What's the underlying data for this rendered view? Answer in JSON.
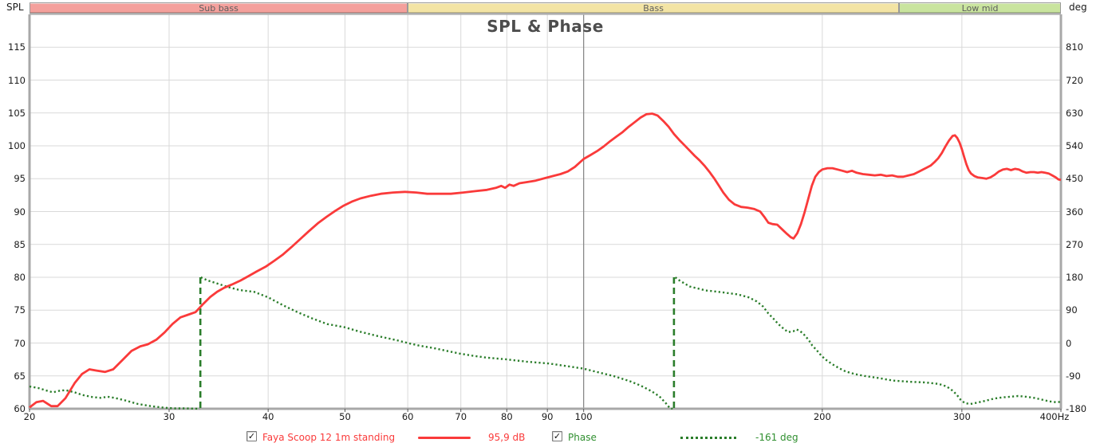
{
  "header": {
    "left_axis_unit": "SPL",
    "right_axis_unit": "deg",
    "title": "SPL & Phase"
  },
  "bands": [
    {
      "label": "Sub bass",
      "from_hz": 20,
      "to_hz": 60,
      "color": "#f4a09c"
    },
    {
      "label": "Bass",
      "from_hz": 60,
      "to_hz": 250,
      "color": "#f3e4a4"
    },
    {
      "label": "Low mid",
      "from_hz": 250,
      "to_hz": 400,
      "color": "#c9e49e"
    }
  ],
  "axes": {
    "x_scale": "log",
    "x_range": [
      20,
      400
    ],
    "x_ticks": [
      20,
      30,
      40,
      50,
      60,
      70,
      80,
      90,
      100,
      200,
      300
    ],
    "x_end_label": "400Hz",
    "left_range": [
      60,
      120
    ],
    "left_ticks": [
      115,
      110,
      105,
      100,
      95,
      90,
      85,
      80,
      75,
      70,
      65,
      60
    ],
    "right_range": [
      -180,
      900
    ],
    "right_ticks": [
      810,
      720,
      630,
      540,
      450,
      360,
      270,
      180,
      90,
      0,
      -90,
      -180
    ],
    "grid_color": "#d9d9d9",
    "grid_major_color": "#8a8a8a",
    "border_color": "#a8a8a8"
  },
  "legend": {
    "check_glyph": "✓",
    "series1": {
      "checked": true,
      "label": "Faya Scoop 12 1m standing",
      "value": "95,9 dB",
      "color": "#fa3a3a"
    },
    "series2": {
      "checked": true,
      "label": "Phase",
      "value": "-161 deg",
      "color": "#2f8f2f",
      "curve_color": "#2a7d2a"
    }
  },
  "chart_data": {
    "type": "line",
    "title": "SPL & Phase",
    "x_axis": {
      "scale": "log",
      "range_hz": [
        20,
        400
      ],
      "ticks": [
        20,
        30,
        40,
        50,
        60,
        70,
        80,
        90,
        100,
        200,
        300,
        400
      ]
    },
    "y_left": {
      "label": "SPL",
      "unit": "dB",
      "range": [
        60,
        120
      ],
      "grid_step": 5
    },
    "y_right": {
      "label": "Phase",
      "unit": "deg",
      "range": [
        -180,
        900
      ],
      "grid_step": 90
    },
    "series": [
      {
        "name": "Faya Scoop 12 1m standing",
        "axis": "left",
        "style": "solid",
        "color": "#fa3a3a",
        "points": [
          [
            20,
            60.2
          ],
          [
            20.4,
            61.0
          ],
          [
            20.8,
            61.2
          ],
          [
            21.3,
            60.4
          ],
          [
            21.7,
            60.4
          ],
          [
            22.2,
            61.6
          ],
          [
            22.8,
            63.9
          ],
          [
            23.3,
            65.3
          ],
          [
            23.8,
            66.0
          ],
          [
            24.3,
            65.8
          ],
          [
            24.9,
            65.6
          ],
          [
            25.5,
            66.0
          ],
          [
            26.2,
            67.4
          ],
          [
            26.9,
            68.8
          ],
          [
            27.6,
            69.5
          ],
          [
            28.2,
            69.8
          ],
          [
            28.9,
            70.5
          ],
          [
            29.6,
            71.6
          ],
          [
            30.3,
            72.9
          ],
          [
            31,
            73.9
          ],
          [
            31.7,
            74.3
          ],
          [
            32.4,
            74.7
          ],
          [
            33.1,
            75.9
          ],
          [
            33.8,
            77.0
          ],
          [
            34.5,
            77.8
          ],
          [
            35.2,
            78.4
          ],
          [
            36,
            78.9
          ],
          [
            36.9,
            79.5
          ],
          [
            37.8,
            80.2
          ],
          [
            38.7,
            80.9
          ],
          [
            39.7,
            81.6
          ],
          [
            40.7,
            82.5
          ],
          [
            41.7,
            83.4
          ],
          [
            42.8,
            84.6
          ],
          [
            43.9,
            85.8
          ],
          [
            45,
            87.0
          ],
          [
            46.2,
            88.2
          ],
          [
            47.4,
            89.2
          ],
          [
            48.6,
            90.1
          ],
          [
            49.8,
            90.9
          ],
          [
            51,
            91.5
          ],
          [
            52.3,
            92.0
          ],
          [
            53.9,
            92.4
          ],
          [
            55.5,
            92.7
          ],
          [
            57.5,
            92.9
          ],
          [
            59.5,
            93.0
          ],
          [
            61.5,
            92.9
          ],
          [
            63.5,
            92.7
          ],
          [
            65.5,
            92.7
          ],
          [
            68,
            92.7
          ],
          [
            70.5,
            92.9
          ],
          [
            73,
            93.1
          ],
          [
            75.5,
            93.3
          ],
          [
            77.5,
            93.6
          ],
          [
            78.7,
            93.9
          ],
          [
            79.6,
            93.6
          ],
          [
            80.6,
            94.1
          ],
          [
            81.6,
            93.9
          ],
          [
            83,
            94.3
          ],
          [
            85,
            94.5
          ],
          [
            87,
            94.7
          ],
          [
            89.5,
            95.1
          ],
          [
            91.5,
            95.4
          ],
          [
            93.5,
            95.7
          ],
          [
            95.5,
            96.1
          ],
          [
            97.5,
            96.8
          ],
          [
            100,
            98.0
          ],
          [
            102,
            98.6
          ],
          [
            104,
            99.2
          ],
          [
            106,
            99.9
          ],
          [
            108,
            100.7
          ],
          [
            110,
            101.4
          ],
          [
            112,
            102.1
          ],
          [
            114,
            102.9
          ],
          [
            116,
            103.6
          ],
          [
            118,
            104.3
          ],
          [
            120,
            104.8
          ],
          [
            122,
            104.9
          ],
          [
            124,
            104.6
          ],
          [
            126,
            103.8
          ],
          [
            128,
            102.9
          ],
          [
            130,
            101.8
          ],
          [
            132,
            100.9
          ],
          [
            134,
            100.1
          ],
          [
            136,
            99.3
          ],
          [
            138,
            98.5
          ],
          [
            140,
            97.8
          ],
          [
            142,
            97.0
          ],
          [
            144,
            96.1
          ],
          [
            146,
            95.1
          ],
          [
            148,
            94.0
          ],
          [
            150,
            92.9
          ],
          [
            152.5,
            91.8
          ],
          [
            155,
            91.1
          ],
          [
            158,
            90.7
          ],
          [
            161,
            90.6
          ],
          [
            164,
            90.4
          ],
          [
            167,
            90.0
          ],
          [
            169,
            89.2
          ],
          [
            171,
            88.3
          ],
          [
            173,
            88.1
          ],
          [
            175.5,
            88.0
          ],
          [
            178,
            87.3
          ],
          [
            180.5,
            86.6
          ],
          [
            182.5,
            86.1
          ],
          [
            184,
            85.9
          ],
          [
            186,
            86.7
          ],
          [
            188,
            88.1
          ],
          [
            190,
            89.9
          ],
          [
            192,
            91.9
          ],
          [
            194,
            93.9
          ],
          [
            196,
            95.3
          ],
          [
            198,
            96.0
          ],
          [
            200,
            96.4
          ],
          [
            203,
            96.6
          ],
          [
            206,
            96.6
          ],
          [
            209,
            96.4
          ],
          [
            212,
            96.2
          ],
          [
            215,
            96.0
          ],
          [
            218,
            96.2
          ],
          [
            221,
            95.9
          ],
          [
            225,
            95.7
          ],
          [
            229,
            95.6
          ],
          [
            233,
            95.5
          ],
          [
            237,
            95.6
          ],
          [
            241,
            95.4
          ],
          [
            245,
            95.5
          ],
          [
            249,
            95.3
          ],
          [
            253,
            95.3
          ],
          [
            257,
            95.5
          ],
          [
            261,
            95.7
          ],
          [
            265,
            96.1
          ],
          [
            268,
            96.4
          ],
          [
            271,
            96.7
          ],
          [
            274,
            97.0
          ],
          [
            277,
            97.5
          ],
          [
            280,
            98.1
          ],
          [
            283,
            98.9
          ],
          [
            286,
            99.9
          ],
          [
            289,
            100.8
          ],
          [
            292,
            101.5
          ],
          [
            294,
            101.6
          ],
          [
            296,
            101.2
          ],
          [
            298,
            100.5
          ],
          [
            300,
            99.5
          ],
          [
            302,
            98.3
          ],
          [
            304,
            97.2
          ],
          [
            306,
            96.3
          ],
          [
            308,
            95.8
          ],
          [
            311,
            95.4
          ],
          [
            314,
            95.2
          ],
          [
            318,
            95.1
          ],
          [
            322,
            95.0
          ],
          [
            326,
            95.2
          ],
          [
            330,
            95.6
          ],
          [
            334,
            96.1
          ],
          [
            338,
            96.4
          ],
          [
            342,
            96.5
          ],
          [
            346,
            96.3
          ],
          [
            350,
            96.5
          ],
          [
            354,
            96.4
          ],
          [
            358,
            96.1
          ],
          [
            362,
            95.9
          ],
          [
            366,
            96.0
          ],
          [
            370,
            96.0
          ],
          [
            374,
            95.9
          ],
          [
            378,
            96.0
          ],
          [
            382,
            95.9
          ],
          [
            386,
            95.8
          ],
          [
            390,
            95.5
          ],
          [
            394,
            95.2
          ],
          [
            397,
            94.9
          ],
          [
            400,
            94.8
          ]
        ]
      },
      {
        "name": "Phase",
        "axis": "right",
        "style": "dotted",
        "color": "#2a7d2a",
        "wrap_lines_hz": [
          32.85,
          130
        ],
        "points": [
          [
            20,
            -119
          ],
          [
            20.5,
            -123
          ],
          [
            21,
            -130
          ],
          [
            21.4,
            -135
          ],
          [
            21.8,
            -131
          ],
          [
            22.2,
            -129
          ],
          [
            22.8,
            -135
          ],
          [
            23.3,
            -142
          ],
          [
            24,
            -148
          ],
          [
            24.6,
            -150
          ],
          [
            25.1,
            -147
          ],
          [
            25.7,
            -151
          ],
          [
            26.4,
            -157
          ],
          [
            27.4,
            -167
          ],
          [
            28.5,
            -173
          ],
          [
            29.5,
            -177
          ],
          [
            30.5,
            -179
          ],
          [
            31.5,
            -179
          ],
          [
            32.3,
            -179.5
          ],
          [
            32.8,
            -180
          ],
          [
            32.9,
            180
          ],
          [
            33.5,
            172
          ],
          [
            34.5,
            163
          ],
          [
            35.5,
            154
          ],
          [
            36.8,
            145
          ],
          [
            38.4,
            140
          ],
          [
            40,
            125
          ],
          [
            41.8,
            103
          ],
          [
            43.6,
            84
          ],
          [
            45.5,
            67
          ],
          [
            47.5,
            52
          ],
          [
            50,
            43
          ],
          [
            52,
            32
          ],
          [
            55,
            19
          ],
          [
            58,
            8
          ],
          [
            60,
            0
          ],
          [
            62,
            -7
          ],
          [
            64.7,
            -14
          ],
          [
            67,
            -21
          ],
          [
            69.8,
            -29
          ],
          [
            72.5,
            -35
          ],
          [
            75.4,
            -40
          ],
          [
            80.1,
            -45
          ],
          [
            84.7,
            -51
          ],
          [
            90.4,
            -56
          ],
          [
            95.1,
            -63
          ],
          [
            99.9,
            -70
          ],
          [
            104.3,
            -80
          ],
          [
            109.3,
            -91
          ],
          [
            114.5,
            -105
          ],
          [
            118.1,
            -117
          ],
          [
            121.8,
            -132
          ],
          [
            124.6,
            -146
          ],
          [
            127,
            -165
          ],
          [
            128.5,
            -179
          ],
          [
            129.5,
            -180
          ],
          [
            130.5,
            180
          ],
          [
            131.5,
            174
          ],
          [
            136,
            155
          ],
          [
            142.6,
            144
          ],
          [
            149.4,
            139
          ],
          [
            156.5,
            133
          ],
          [
            161.5,
            125
          ],
          [
            165.3,
            114
          ],
          [
            168.4,
            100
          ],
          [
            171,
            81
          ],
          [
            173.5,
            67
          ],
          [
            176,
            52
          ],
          [
            179.2,
            37
          ],
          [
            181.2,
            30
          ],
          [
            183.8,
            32
          ],
          [
            185.7,
            37
          ],
          [
            187.7,
            32
          ],
          [
            189.7,
            23
          ],
          [
            192.3,
            8
          ],
          [
            194.3,
            -7
          ],
          [
            197,
            -21
          ],
          [
            199.7,
            -36
          ],
          [
            202.4,
            -47
          ],
          [
            205.9,
            -58
          ],
          [
            210,
            -69
          ],
          [
            214.2,
            -78
          ],
          [
            219.9,
            -85
          ],
          [
            226,
            -90
          ],
          [
            234,
            -95
          ],
          [
            245.9,
            -103
          ],
          [
            257.6,
            -106
          ],
          [
            269.8,
            -108
          ],
          [
            280.4,
            -112
          ],
          [
            287,
            -119
          ],
          [
            291.8,
            -130
          ],
          [
            295.4,
            -141
          ],
          [
            299.1,
            -156
          ],
          [
            302.8,
            -165
          ],
          [
            307.7,
            -167
          ],
          [
            314,
            -163
          ],
          [
            321.6,
            -158
          ],
          [
            329.4,
            -152
          ],
          [
            337.2,
            -149
          ],
          [
            345.2,
            -147
          ],
          [
            353.3,
            -145
          ],
          [
            361.5,
            -147
          ],
          [
            369.9,
            -150
          ],
          [
            378.4,
            -155
          ],
          [
            387,
            -160
          ],
          [
            394.3,
            -162
          ],
          [
            400,
            -161
          ]
        ]
      }
    ],
    "frequency_bands": [
      {
        "label": "Sub bass",
        "from_hz": 20,
        "to_hz": 60
      },
      {
        "label": "Bass",
        "from_hz": 60,
        "to_hz": 250
      },
      {
        "label": "Low mid",
        "from_hz": 250,
        "to_hz": 400
      }
    ],
    "readout": {
      "spl": "95,9 dB",
      "phase": "-161 deg"
    }
  }
}
